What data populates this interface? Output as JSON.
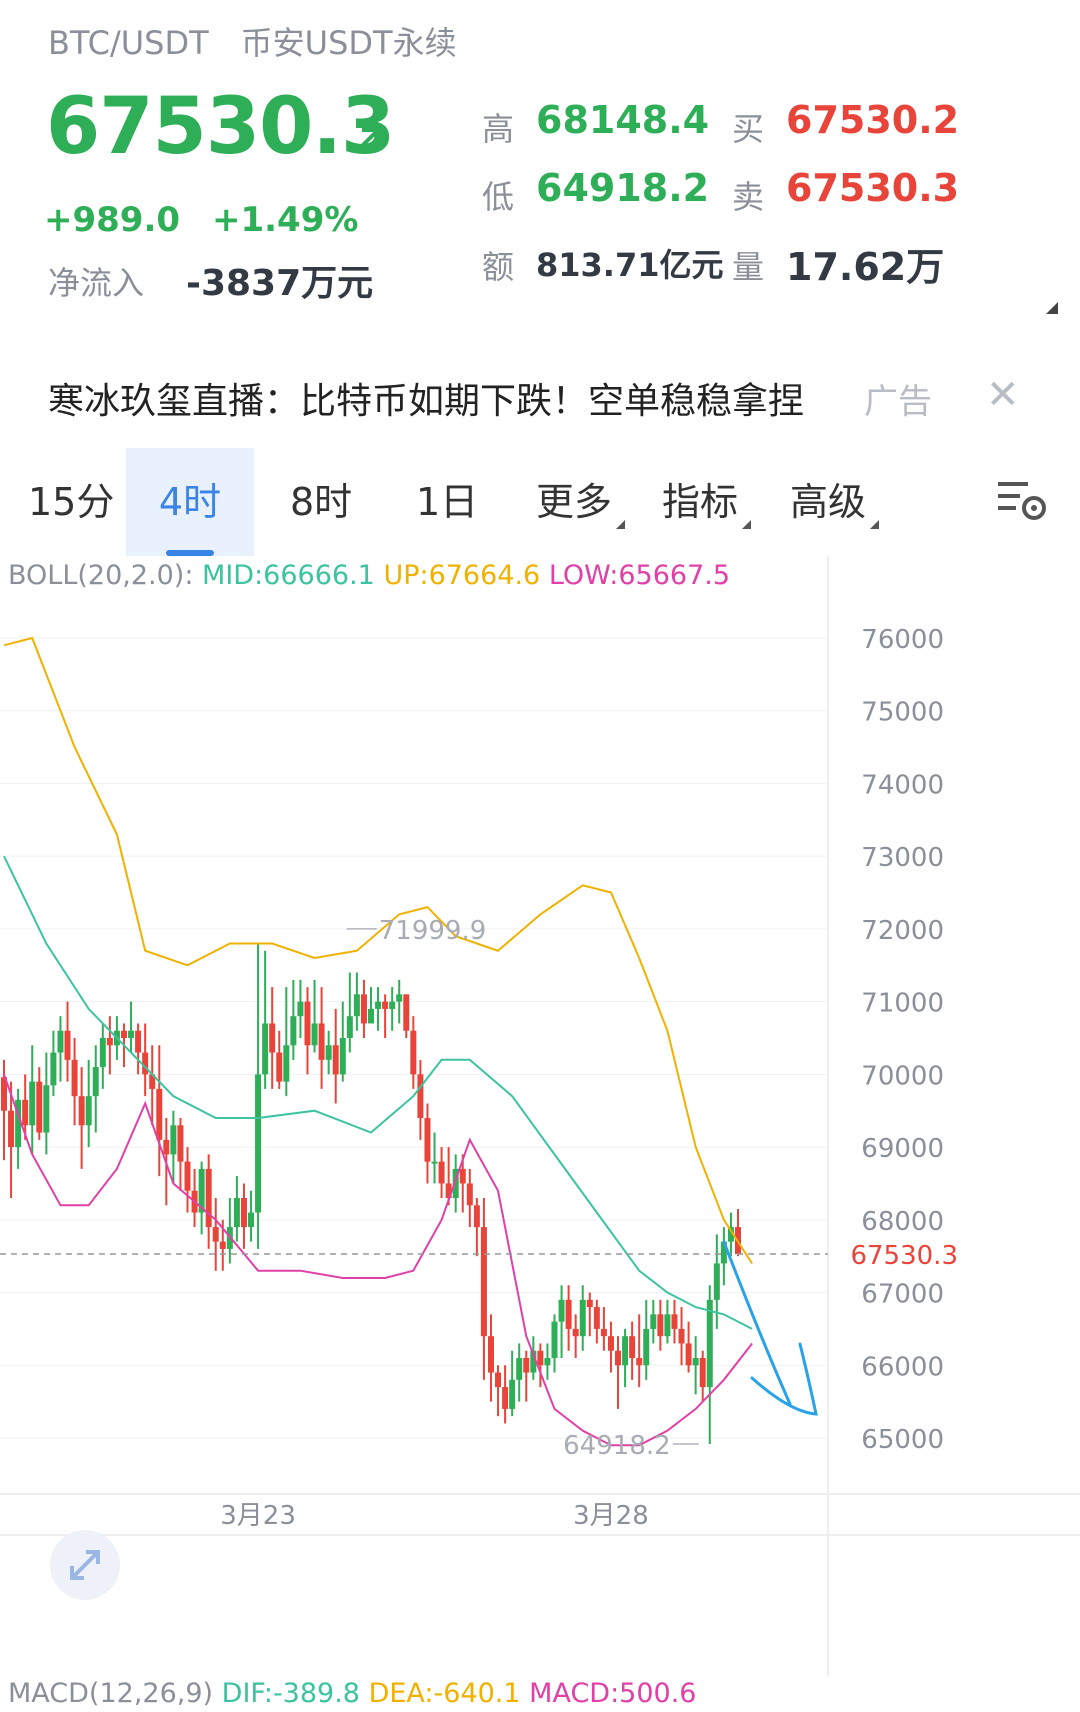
{
  "header": {
    "pair": "BTC/USDT",
    "market": "币安USDT永续",
    "price": "67530.3",
    "change": "+989.0",
    "change_pct": "+1.49%",
    "net_inflow_label": "净流入",
    "net_inflow": "-3837万元",
    "high_label": "高",
    "high": "68148.4",
    "low_label": "低",
    "low": "64918.2",
    "amount_label": "额",
    "amount": "813.71亿元",
    "bid_label": "买",
    "bid": "67530.2",
    "ask_label": "卖",
    "ask": "67530.3",
    "volume_label": "量",
    "volume": "17.62万"
  },
  "ad": {
    "text": "寒冰玖玺直播：比特币如期下跌！空单稳稳拿捏",
    "tag": "广告",
    "close": "✕"
  },
  "tabs": [
    {
      "label": "15分"
    },
    {
      "label": "4时",
      "active": true
    },
    {
      "label": "8时"
    },
    {
      "label": "1日"
    },
    {
      "label": "更多"
    },
    {
      "label": "指标"
    },
    {
      "label": "高级"
    }
  ],
  "indicators": {
    "boll_label": "BOLL(20,2.0):",
    "boll_mid": "MID:66666.1",
    "boll_up": "UP:67664.6",
    "boll_low": "LOW:65667.5",
    "macd_label": "MACD(12,26,9)",
    "macd_dif": "DIF:-389.8",
    "macd_dea": "DEA:-640.1",
    "macd_val": "MACD:500.6"
  },
  "colors": {
    "up": "#2fae58",
    "down": "#e8443a",
    "mid": "#3cc3a0",
    "upper": "#f0b100",
    "lower": "#e040a8",
    "accent": "#3a84e8"
  },
  "chart_data": {
    "type": "candlestick",
    "y_ticks": [
      76000,
      75000,
      74000,
      73000,
      72000,
      71000,
      70000,
      69000,
      68000,
      67000,
      66000,
      65000
    ],
    "x_labels": [
      {
        "index": 36,
        "label": "3月23"
      },
      {
        "index": 86,
        "label": "3月28"
      }
    ],
    "current_price_label": "67530.3",
    "current_price": 67530.3,
    "max_marker": {
      "label": "71999.9",
      "value": 71999.9
    },
    "min_marker": {
      "label": "64918.2",
      "value": 64918.2
    },
    "candles": [
      [
        69960,
        69500,
        70200,
        68820
      ],
      [
        69500,
        69000,
        69900,
        68300
      ],
      [
        69000,
        69650,
        69800,
        68700
      ],
      [
        69650,
        69300,
        70000,
        69100
      ],
      [
        69300,
        69900,
        70400,
        68900
      ],
      [
        69900,
        69200,
        70100,
        69100
      ],
      [
        69200,
        69850,
        70300,
        68900
      ],
      [
        69850,
        70300,
        70600,
        69700
      ],
      [
        70300,
        70600,
        70800,
        69900
      ],
      [
        70600,
        70200,
        71000,
        69900
      ],
      [
        70200,
        69700,
        70500,
        69300
      ],
      [
        69700,
        69300,
        70100,
        68700
      ],
      [
        69300,
        69700,
        70200,
        69000
      ],
      [
        69700,
        70100,
        70400,
        69200
      ],
      [
        70100,
        70500,
        70700,
        69800
      ],
      [
        70500,
        70400,
        70800,
        70000
      ],
      [
        70400,
        70600,
        70800,
        70200
      ],
      [
        70600,
        70500,
        70700,
        70100
      ],
      [
        70500,
        70600,
        71000,
        70300
      ],
      [
        70600,
        70300,
        70700,
        70000
      ],
      [
        70300,
        70000,
        70700,
        69700
      ],
      [
        70000,
        69800,
        70400,
        69300
      ],
      [
        69800,
        69100,
        70400,
        68600
      ],
      [
        69100,
        68900,
        69400,
        68200
      ],
      [
        68900,
        69300,
        69500,
        68500
      ],
      [
        69300,
        68800,
        69400,
        68400
      ],
      [
        68800,
        68400,
        69000,
        68100
      ],
      [
        68400,
        68100,
        68700,
        67900
      ],
      [
        68100,
        68700,
        68800,
        67800
      ],
      [
        68700,
        67900,
        68900,
        67600
      ],
      [
        67900,
        67700,
        68300,
        67300
      ],
      [
        67700,
        67600,
        68000,
        67300
      ],
      [
        67600,
        67900,
        68300,
        67400
      ],
      [
        67900,
        68300,
        68600,
        67700
      ],
      [
        68300,
        67900,
        68500,
        67600
      ],
      [
        67900,
        68100,
        68400,
        67700
      ],
      [
        68100,
        70000,
        71800,
        67600
      ],
      [
        70000,
        70700,
        71700,
        69800
      ],
      [
        70700,
        70300,
        71200,
        69800
      ],
      [
        70300,
        69900,
        70600,
        69800
      ],
      [
        69900,
        70400,
        71200,
        69700
      ],
      [
        70400,
        70800,
        71300,
        70200
      ],
      [
        70800,
        71000,
        71300,
        70500
      ],
      [
        71000,
        70400,
        71200,
        70000
      ],
      [
        70400,
        70700,
        71300,
        70300
      ],
      [
        70700,
        70200,
        71200,
        69800
      ],
      [
        70200,
        70400,
        70600,
        70000
      ],
      [
        70400,
        70000,
        70900,
        69600
      ],
      [
        70000,
        70500,
        71000,
        69900
      ],
      [
        70500,
        70800,
        71400,
        70300
      ],
      [
        70800,
        71100,
        71400,
        70600
      ],
      [
        71100,
        70700,
        71300,
        70500
      ],
      [
        70700,
        70900,
        71200,
        70700
      ],
      [
        70900,
        71000,
        71200,
        70600
      ],
      [
        71000,
        70900,
        71100,
        70500
      ],
      [
        70900,
        71000,
        71200,
        70600
      ],
      [
        71000,
        71100,
        71300,
        70700
      ],
      [
        71100,
        70600,
        71100,
        70500
      ],
      [
        70600,
        70000,
        70800,
        69800
      ],
      [
        70000,
        69400,
        70200,
        69100
      ],
      [
        69400,
        68800,
        69600,
        68500
      ],
      [
        68800,
        68800,
        69200,
        68500
      ],
      [
        68800,
        68500,
        69000,
        68300
      ],
      [
        68500,
        68300,
        69000,
        68200
      ],
      [
        68300,
        68700,
        68900,
        68100
      ],
      [
        68700,
        68500,
        68900,
        68100
      ],
      [
        68500,
        68200,
        68700,
        67900
      ],
      [
        68200,
        67900,
        68300,
        67500
      ],
      [
        67900,
        66400,
        68300,
        65800
      ],
      [
        66400,
        65900,
        66700,
        65500
      ],
      [
        65900,
        65700,
        66000,
        65300
      ],
      [
        65700,
        65400,
        66000,
        65200
      ],
      [
        65400,
        65800,
        66200,
        65300
      ],
      [
        65800,
        66100,
        66300,
        65500
      ],
      [
        66100,
        65900,
        66200,
        65500
      ],
      [
        65900,
        66200,
        66400,
        65800
      ],
      [
        66200,
        66000,
        66300,
        65700
      ],
      [
        66000,
        66100,
        66300,
        65800
      ],
      [
        66100,
        66600,
        66700,
        65900
      ],
      [
        66600,
        66900,
        67100,
        66100
      ],
      [
        66900,
        66500,
        67100,
        66200
      ],
      [
        66500,
        66400,
        66700,
        66100
      ],
      [
        66400,
        66900,
        67100,
        66200
      ],
      [
        66900,
        66800,
        67000,
        66400
      ],
      [
        66800,
        66500,
        66900,
        66300
      ],
      [
        66500,
        66400,
        66800,
        66200
      ],
      [
        66400,
        66200,
        66600,
        65900
      ],
      [
        66200,
        66000,
        66400,
        65400
      ],
      [
        66000,
        66400,
        66500,
        65700
      ],
      [
        66400,
        66100,
        66600,
        65800
      ],
      [
        66100,
        66000,
        66700,
        65700
      ],
      [
        66000,
        66500,
        66900,
        65800
      ],
      [
        66500,
        66700,
        66900,
        66300
      ],
      [
        66700,
        66400,
        66900,
        66200
      ],
      [
        66400,
        66700,
        66900,
        66300
      ],
      [
        66700,
        66500,
        66900,
        66300
      ],
      [
        66500,
        66300,
        66800,
        66000
      ],
      [
        66300,
        66000,
        66600,
        65900
      ],
      [
        66000,
        66100,
        66400,
        65600
      ],
      [
        66100,
        65700,
        66200,
        65500
      ],
      [
        65700,
        66900,
        67100,
        64918.2
      ],
      [
        66900,
        67400,
        67800,
        66500
      ],
      [
        67400,
        67700,
        67900,
        67100
      ],
      [
        67700,
        67900,
        68100,
        67500
      ],
      [
        67900,
        67530.3,
        68148.4,
        67500
      ]
    ],
    "boll_upper": [
      [
        0,
        75900
      ],
      [
        4,
        76000
      ],
      [
        10,
        74500
      ],
      [
        16,
        73300
      ],
      [
        20,
        71700
      ],
      [
        26,
        71500
      ],
      [
        32,
        71800
      ],
      [
        38,
        71800
      ],
      [
        44,
        71600
      ],
      [
        50,
        71700
      ],
      [
        56,
        72200
      ],
      [
        60,
        72300
      ],
      [
        64,
        71900
      ],
      [
        70,
        71700
      ],
      [
        76,
        72200
      ],
      [
        82,
        72600
      ],
      [
        86,
        72500
      ],
      [
        90,
        71600
      ],
      [
        94,
        70600
      ],
      [
        98,
        69000
      ],
      [
        102,
        68000
      ],
      [
        106,
        67400
      ]
    ],
    "boll_mid": [
      [
        0,
        73000
      ],
      [
        6,
        71800
      ],
      [
        12,
        70900
      ],
      [
        18,
        70300
      ],
      [
        24,
        69700
      ],
      [
        30,
        69400
      ],
      [
        36,
        69400
      ],
      [
        44,
        69500
      ],
      [
        52,
        69200
      ],
      [
        58,
        69700
      ],
      [
        62,
        70200
      ],
      [
        66,
        70200
      ],
      [
        72,
        69700
      ],
      [
        78,
        68900
      ],
      [
        84,
        68100
      ],
      [
        90,
        67300
      ],
      [
        94,
        67000
      ],
      [
        98,
        66800
      ],
      [
        102,
        66700
      ],
      [
        106,
        66500
      ]
    ],
    "boll_lower": [
      [
        0,
        70000
      ],
      [
        4,
        68900
      ],
      [
        8,
        68200
      ],
      [
        12,
        68200
      ],
      [
        16,
        68700
      ],
      [
        20,
        69600
      ],
      [
        24,
        68500
      ],
      [
        30,
        68000
      ],
      [
        36,
        67300
      ],
      [
        42,
        67300
      ],
      [
        48,
        67200
      ],
      [
        54,
        67200
      ],
      [
        58,
        67300
      ],
      [
        62,
        68000
      ],
      [
        66,
        69100
      ],
      [
        70,
        68400
      ],
      [
        74,
        66400
      ],
      [
        78,
        65400
      ],
      [
        82,
        65100
      ],
      [
        86,
        64900
      ],
      [
        90,
        64900
      ],
      [
        94,
        65100
      ],
      [
        98,
        65400
      ],
      [
        102,
        65800
      ],
      [
        106,
        66300
      ]
    ]
  }
}
